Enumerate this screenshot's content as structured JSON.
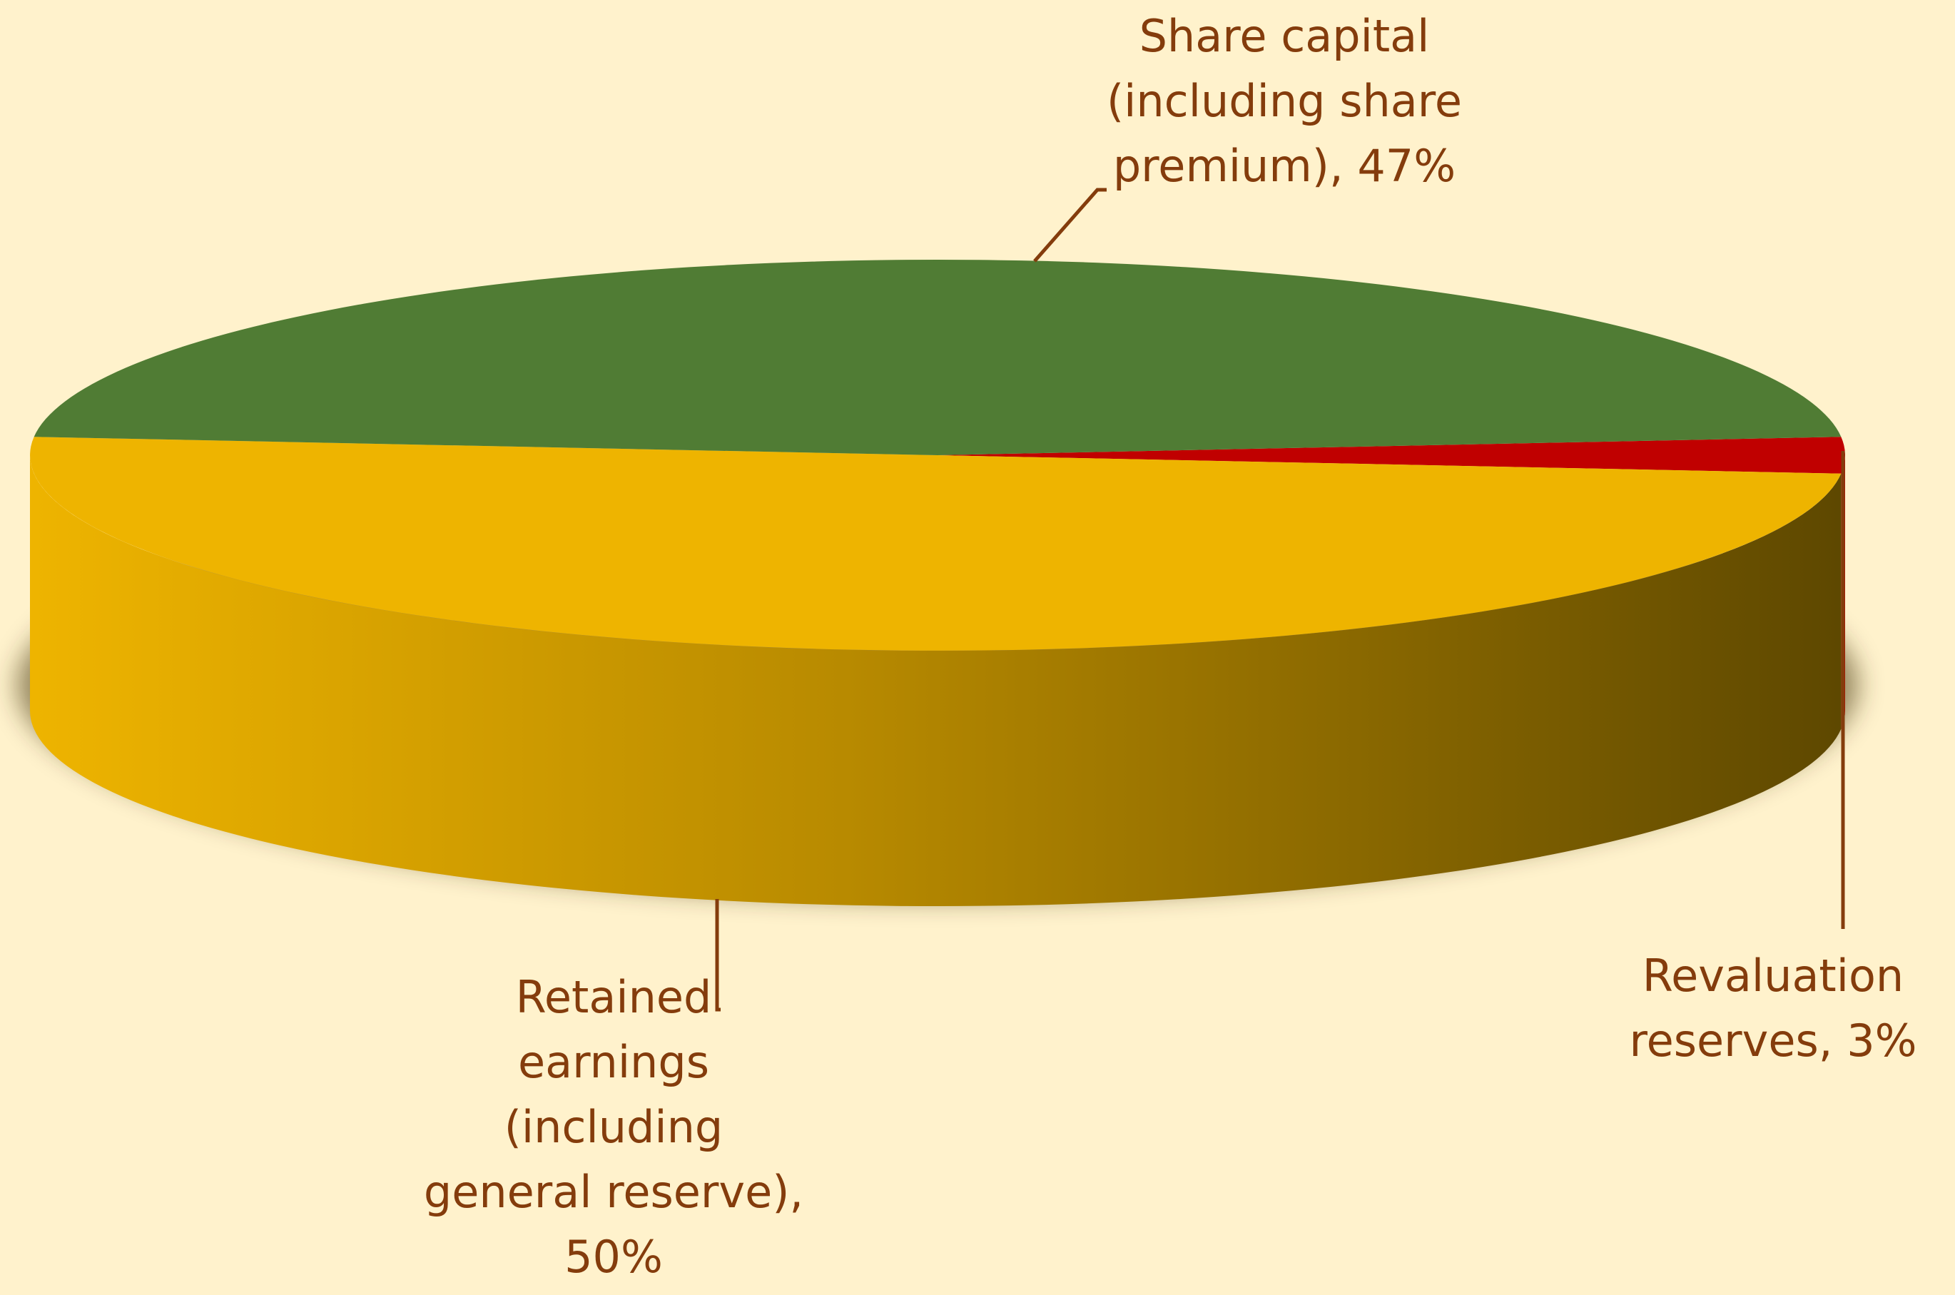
{
  "chart_data": {
    "type": "pie3d",
    "labels": [
      "Share capital (including share premium), 47%",
      "Revaluation reserves, 3%",
      "Retained earnings (including general reserve), 50%"
    ],
    "values": [
      47,
      3,
      50
    ],
    "colors": [
      "#507c34",
      "#c00000",
      "#eeb400"
    ]
  }
}
